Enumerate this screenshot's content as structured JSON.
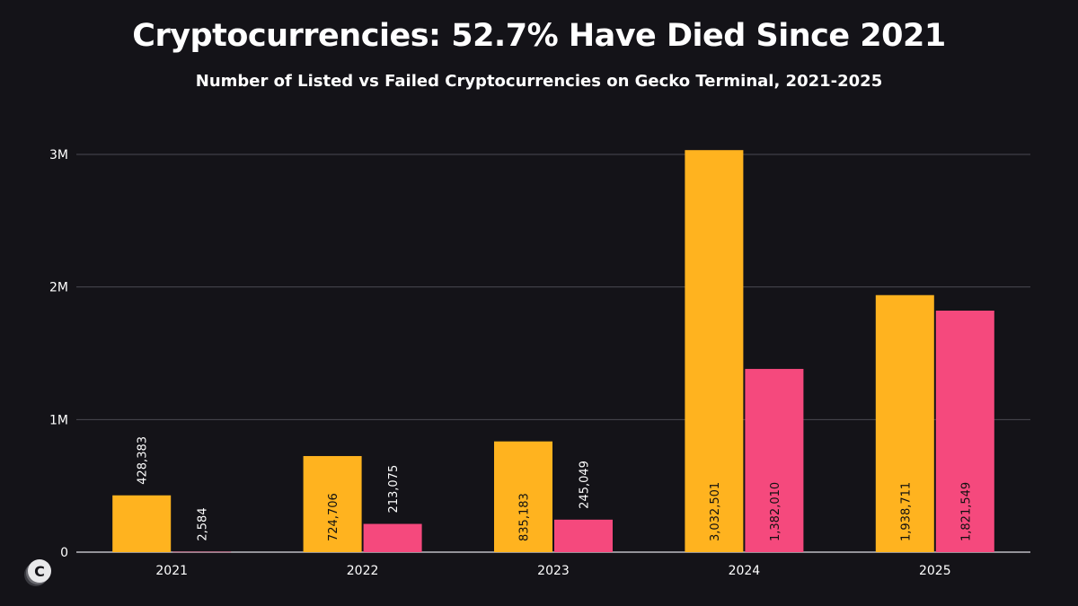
{
  "title": "Cryptocurrencies: 52.7% Have Died Since 2021",
  "subtitle": "Number of Listed vs Failed Cryptocurrencies on Gecko Terminal, 2021-2025",
  "colors": {
    "background": "#141318",
    "listed": "#FFB31F",
    "failed": "#F5497D",
    "grid": "#4a4a52"
  },
  "logo_icon": "coinstats-logo-icon",
  "chart_data": {
    "type": "bar",
    "categories": [
      "2021",
      "2022",
      "2023",
      "2024",
      "2025"
    ],
    "series": [
      {
        "values": [
          428383,
          724706,
          835183,
          3032501,
          1938711
        ],
        "labels": [
          "428,383",
          "724,706",
          "835,183",
          "3,032,501",
          "1,938,711"
        ],
        "color": "#FFB31F"
      },
      {
        "values": [
          2584,
          213075,
          245049,
          1382010,
          1821549
        ],
        "labels": [
          "2,584",
          "213,075",
          "245,049",
          "1,382,010",
          "1,821,549"
        ],
        "color": "#F5497D"
      }
    ],
    "yticks": [
      0,
      1000000,
      2000000,
      3000000
    ],
    "ytick_labels": [
      "0",
      "1M",
      "2M",
      "3M"
    ],
    "ylim": [
      0,
      3000000
    ],
    "grid": true,
    "legend": false
  }
}
